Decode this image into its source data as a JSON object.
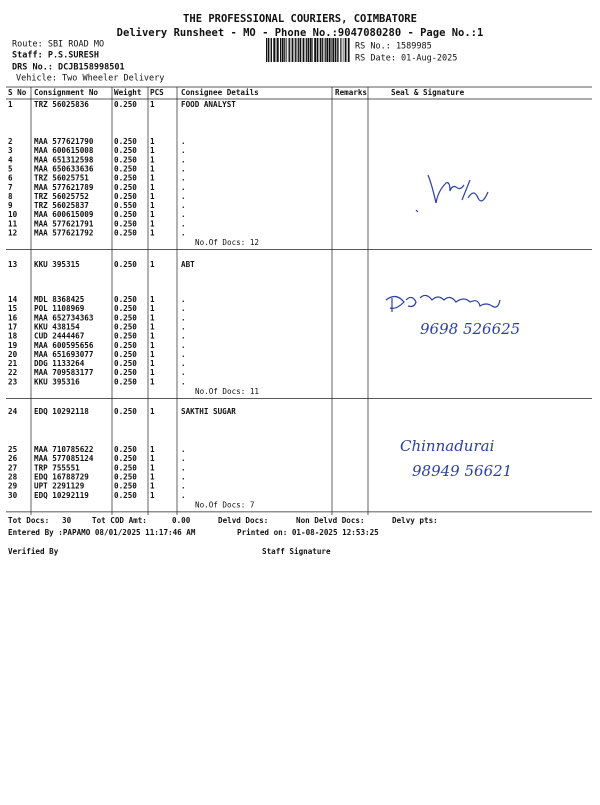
{
  "header": {
    "company": "THE PROFESSIONAL COURIERS, COIMBATORE",
    "title": "Delivery Runsheet - MO - Phone No.:9047080280 - Page No.:1",
    "route": "Route: SBI ROAD MO",
    "staff": "Staff: P.S.SURESH",
    "drs": "DRS No.: DCJB158998501",
    "vehicle": "Vehicle: Two Wheeler Delivery",
    "rs_no": "RS No.: 1589985",
    "rs_date": "RS Date: 01-Aug-2025"
  },
  "table": {
    "columns": [
      "S No",
      "Consignment No",
      "Weight",
      "PCS",
      "Consignee Details",
      "Remarks",
      "Seal & Signature"
    ],
    "groups": [
      {
        "rows": [
          [
            "1",
            "TRZ 56025836",
            "0.250",
            "1",
            "FOOD ANALYST"
          ],
          [
            "2",
            "MAA 577621790",
            "0.250",
            "1",
            "."
          ],
          [
            "3",
            "MAA 600615008",
            "0.250",
            "1",
            "."
          ],
          [
            "4",
            "MAA 651312598",
            "0.250",
            "1",
            "."
          ],
          [
            "5",
            "MAA 650633636",
            "0.250",
            "1",
            "."
          ],
          [
            "6",
            "TRZ 56025751",
            "0.250",
            "1",
            "."
          ],
          [
            "7",
            "MAA 577621789",
            "0.250",
            "1",
            "."
          ],
          [
            "8",
            "TRZ 56025752",
            "0.250",
            "1",
            "."
          ],
          [
            "9",
            "TRZ 56025837",
            "0.550",
            "1",
            "."
          ],
          [
            "10",
            "MAA 600615009",
            "0.250",
            "1",
            "."
          ],
          [
            "11",
            "MAA 577621791",
            "0.250",
            "1",
            "."
          ],
          [
            "12",
            "MAA 577621792",
            "0.250",
            "1",
            "."
          ]
        ],
        "docs": "No.Of Docs: 12"
      },
      {
        "rows": [
          [
            "13",
            "KKU 395315",
            "0.250",
            "1",
            "ABT"
          ],
          [
            "14",
            "MDL 8368425",
            "0.250",
            "1",
            "."
          ],
          [
            "15",
            "POL 1108969",
            "0.250",
            "1",
            "."
          ],
          [
            "16",
            "MAA 652734363",
            "0.250",
            "1",
            "."
          ],
          [
            "17",
            "KKU 438154",
            "0.250",
            "1",
            "."
          ],
          [
            "18",
            "CUD 2444467",
            "0.250",
            "1",
            "."
          ],
          [
            "19",
            "MAA 600595656",
            "0.250",
            "1",
            "."
          ],
          [
            "20",
            "MAA 651693077",
            "0.250",
            "1",
            "."
          ],
          [
            "21",
            "DDG 1133264",
            "0.250",
            "1",
            "."
          ],
          [
            "22",
            "MAA 709583177",
            "0.250",
            "1",
            "."
          ],
          [
            "23",
            "KKU 395316",
            "0.250",
            "1",
            "."
          ]
        ],
        "docs": "No.Of Docs: 11"
      },
      {
        "rows": [
          [
            "24",
            "EDQ 10292118",
            "0.250",
            "1",
            "SAKTHI SUGAR"
          ],
          [
            "25",
            "MAA 710785622",
            "0.250",
            "1",
            "."
          ],
          [
            "26",
            "MAA 577085124",
            "0.250",
            "1",
            "."
          ],
          [
            "27",
            "TRP 755551",
            "0.250",
            "1",
            "."
          ],
          [
            "28",
            "EDQ 16788729",
            "0.250",
            "1",
            "."
          ],
          [
            "29",
            "UPT 2291129",
            "0.250",
            "1",
            "."
          ],
          [
            "30",
            "EDQ 10292119",
            "0.250",
            "1",
            "."
          ]
        ],
        "docs": "No.Of Docs: 7"
      }
    ]
  },
  "totals": {
    "tot_docs_label": "Tot Docs:",
    "tot_docs": "30",
    "cod_label": "Tot COD Amt:",
    "cod": "0.00",
    "delvd": "Delvd Docs:",
    "non_delvd": "Non Delvd Docs:",
    "delvy_pts": "Delvy pts:",
    "entered": "Entered By :PAPAMO 08/01/2025 11:17:46 AM",
    "printed": "Printed on: 01-08-2025 12:53:25",
    "verified": "Verified By",
    "staff_signature": "Staff Signature"
  },
  "handwriting": {
    "phone_2": "9698 526625",
    "name_3": "Chinnadurai",
    "phone_3": "98949 56621"
  }
}
